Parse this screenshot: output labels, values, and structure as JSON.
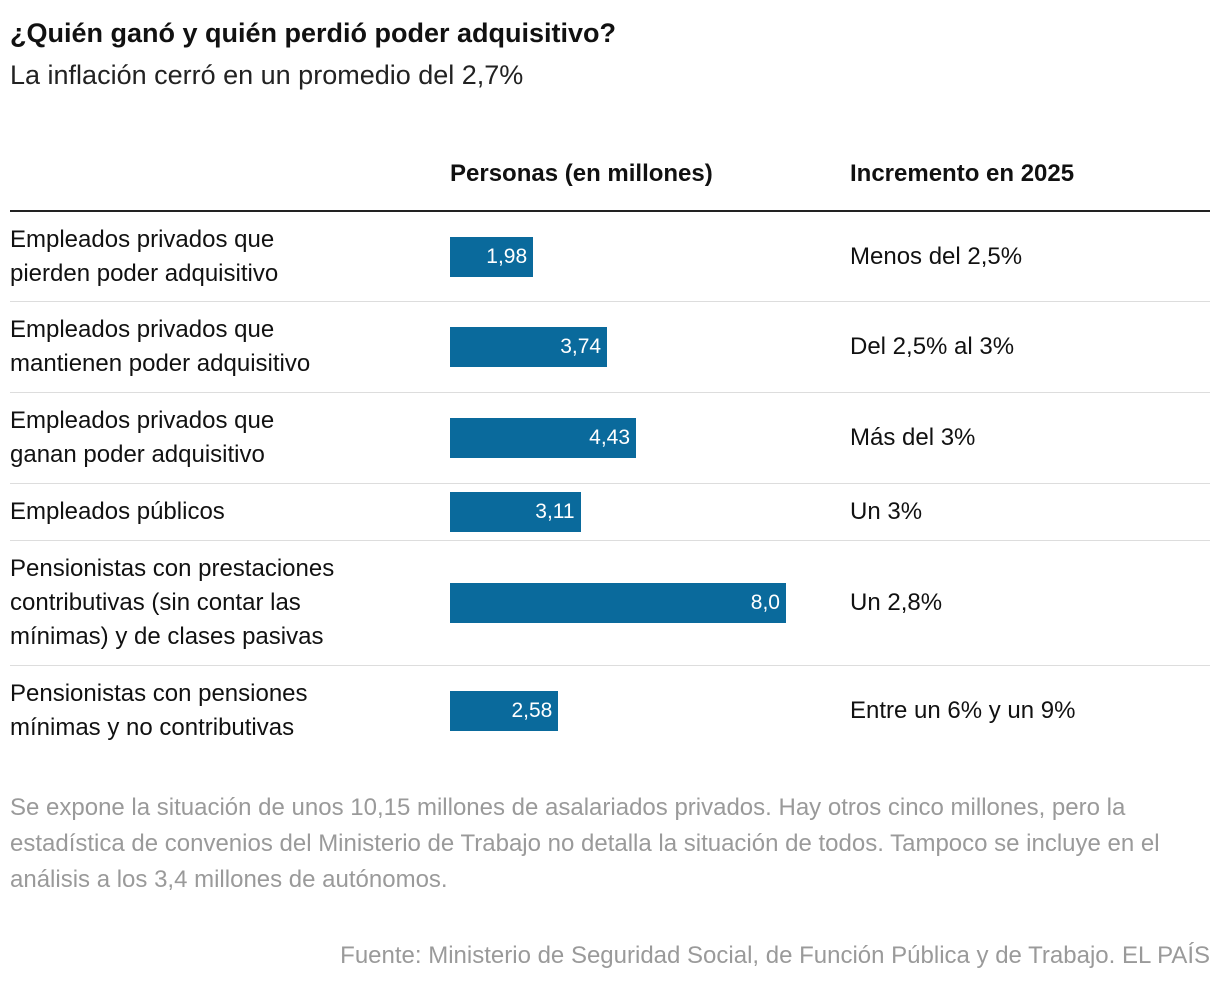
{
  "title": "¿Quién ganó y quién perdió poder adquisitivo?",
  "subtitle": "La inflación cerró en un promedio del 2,7%",
  "chart_data": {
    "type": "bar",
    "orientation": "horizontal",
    "columns": [
      "Personas (en millones)",
      "Incremento en 2025"
    ],
    "categories": [
      "Empleados privados que pierden poder adquisitivo",
      "Empleados privados que mantienen poder adquisitivo",
      "Empleados privados que ganan poder adquisitivo",
      "Empleados públicos",
      "Pensionistas con prestaciones contributivas (sin contar las mínimas) y de clases pasivas",
      "Pensionistas con pensiones mínimas y no contributivas"
    ],
    "values": [
      1.98,
      3.74,
      4.43,
      3.11,
      8.0,
      2.58
    ],
    "value_labels": [
      "1,98",
      "3,74",
      "4,43",
      "3,11",
      "8,0",
      "2,58"
    ],
    "increments": [
      "Menos del 2,5%",
      "Del 2,5% al 3%",
      "Más del 3%",
      "Un 3%",
      "Un 2,8%",
      "Entre un 6% y un 9%"
    ],
    "bar_color": "#0a6a9c"
  },
  "note": "Se expone la situación de unos 10,15 millones de asalariados privados. Hay otros cinco millones, pero la estadística de convenios del Ministerio de Trabajo no detalla la situación de todos. Tampoco se incluye en el análisis a los 3,4 millones de autónomos.",
  "source": "Fuente: Ministerio de Seguridad Social, de Función Pública y de Trabajo. EL PAÍS"
}
